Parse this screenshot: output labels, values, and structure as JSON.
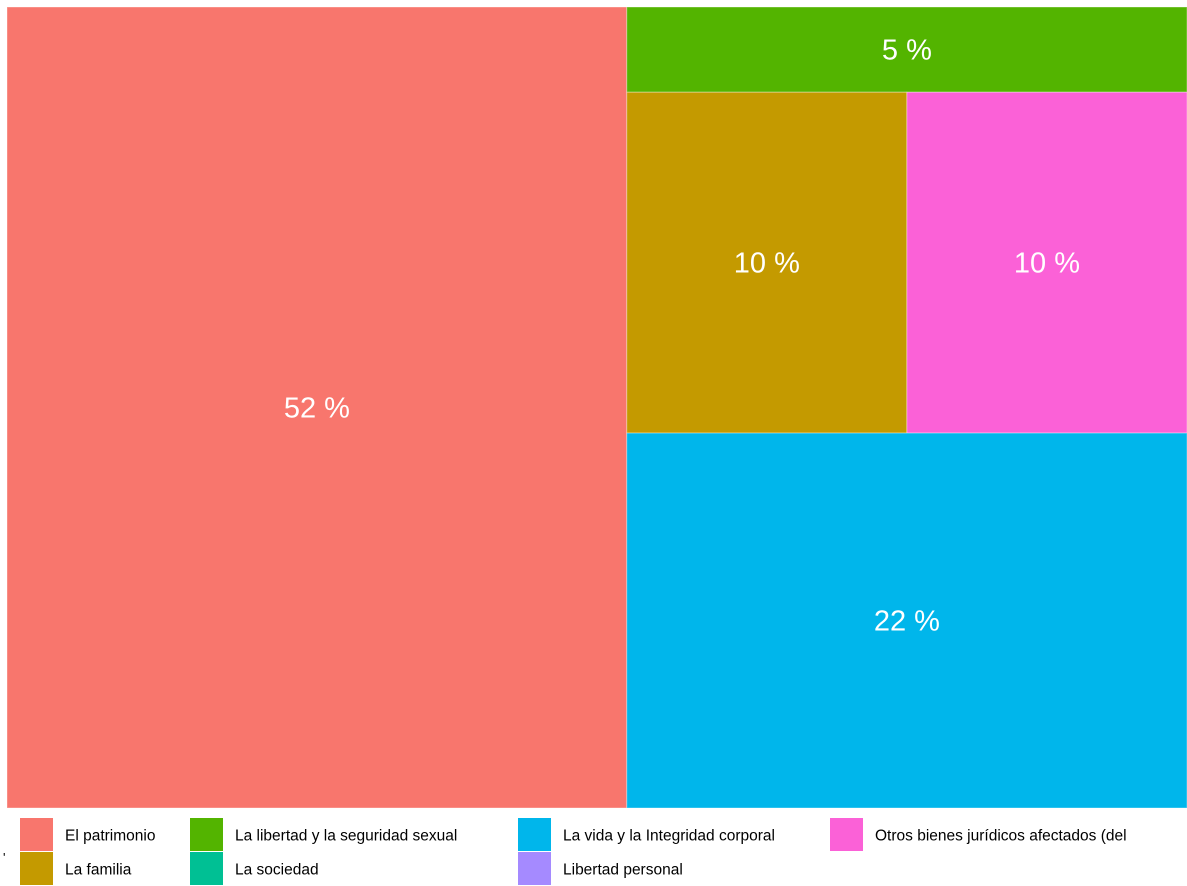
{
  "chart_data": {
    "type": "treemap",
    "title": "",
    "series": [
      {
        "name": "El patrimonio",
        "value": 52,
        "label": "52 %",
        "color": "#F8766D"
      },
      {
        "name": "La familia",
        "value": 10,
        "label": "10 %",
        "color": "#C49A00"
      },
      {
        "name": "La libertad y la seguridad sexual",
        "value": 5,
        "label": "5 %",
        "color": "#53B400"
      },
      {
        "name": "La sociedad",
        "value": 0,
        "label": "",
        "color": "#00C094"
      },
      {
        "name": "La vida y la Integridad corporal",
        "value": 22,
        "label": "22 %",
        "color": "#00B6EB"
      },
      {
        "name": "Libertad personal",
        "value": 0,
        "label": "",
        "color": "#A58AFF"
      },
      {
        "name": "Otros bienes jurídicos afectados (del",
        "value": 10,
        "label": "10 %",
        "color": "#FB61D7"
      }
    ],
    "legend_position": "bottom"
  },
  "legend_edge_mark": "'"
}
